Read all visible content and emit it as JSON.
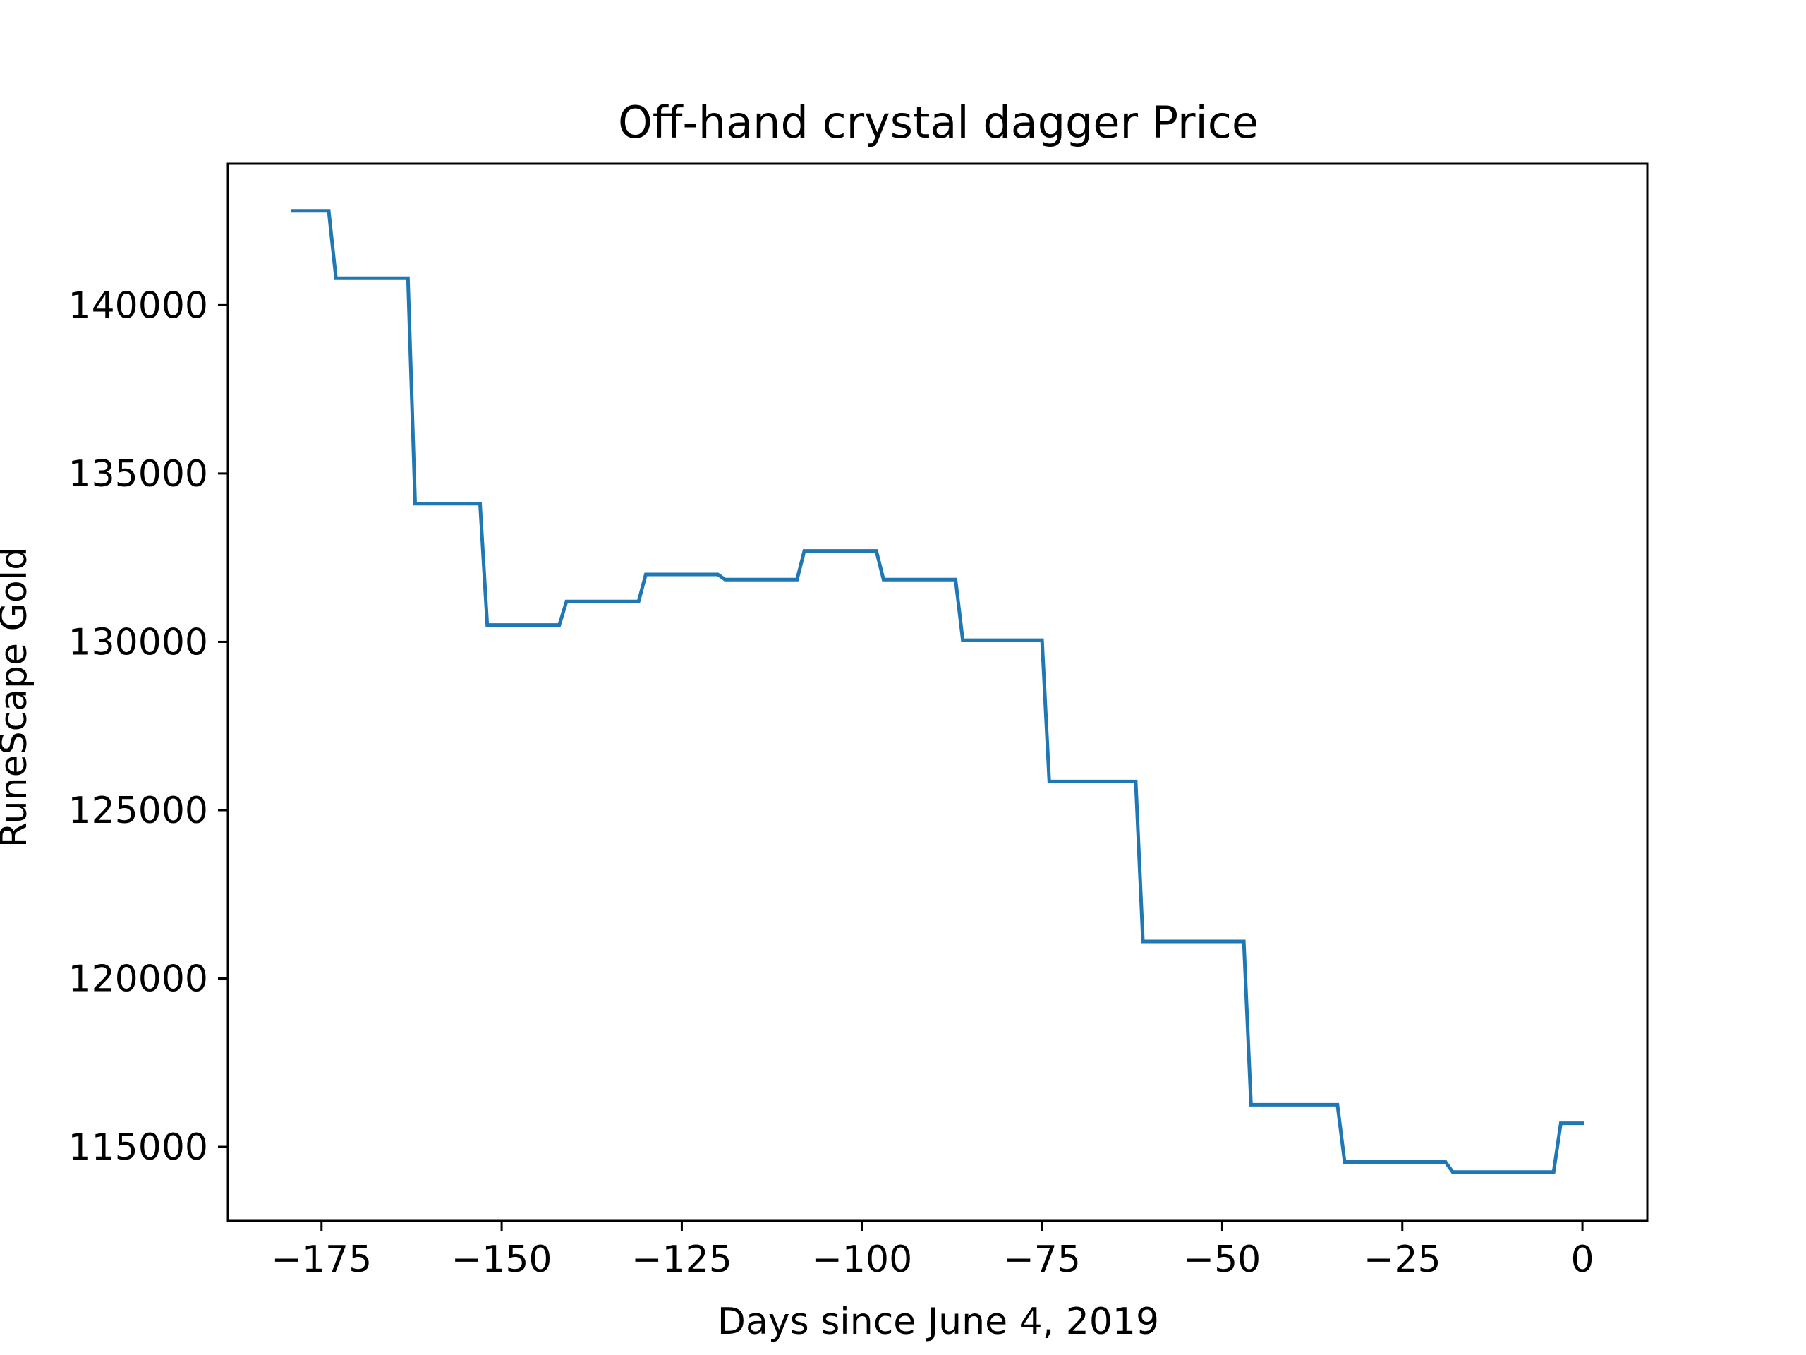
{
  "chart_data": {
    "type": "line",
    "title": "Off-hand crystal dagger Price",
    "xlabel": "Days since June 4, 2019",
    "ylabel": "RuneScape Gold",
    "xlim": [
      -188,
      9
    ],
    "ylim": [
      112800,
      144200
    ],
    "xticks": [
      -175,
      -150,
      -125,
      -100,
      -75,
      -50,
      -25,
      0
    ],
    "xtick_labels": [
      "−175",
      "−150",
      "−125",
      "−100",
      "−75",
      "−50",
      "−25",
      "0"
    ],
    "yticks": [
      115000,
      120000,
      125000,
      130000,
      135000,
      140000
    ],
    "ytick_labels": [
      "115000",
      "120000",
      "125000",
      "130000",
      "135000",
      "140000"
    ],
    "grid": false,
    "legend": "none",
    "series": [
      {
        "color": "#1f77b4",
        "points": [
          [
            -179,
            142800
          ],
          [
            -174,
            142800
          ],
          [
            -173,
            140800
          ],
          [
            -163,
            140800
          ],
          [
            -162,
            134100
          ],
          [
            -153,
            134100
          ],
          [
            -152,
            130500
          ],
          [
            -142,
            130500
          ],
          [
            -141,
            131200
          ],
          [
            -131,
            131200
          ],
          [
            -130,
            132000
          ],
          [
            -120,
            132000
          ],
          [
            -119,
            131850
          ],
          [
            -109,
            131850
          ],
          [
            -108,
            132700
          ],
          [
            -98,
            132700
          ],
          [
            -97,
            131850
          ],
          [
            -87,
            131850
          ],
          [
            -86,
            130050
          ],
          [
            -75,
            130050
          ],
          [
            -74,
            125850
          ],
          [
            -62,
            125850
          ],
          [
            -61,
            121100
          ],
          [
            -47,
            121100
          ],
          [
            -46,
            116250
          ],
          [
            -34,
            116250
          ],
          [
            -33,
            114550
          ],
          [
            -19,
            114550
          ],
          [
            -18,
            114250
          ],
          [
            -4,
            114250
          ],
          [
            -3,
            115700
          ],
          [
            0,
            115700
          ]
        ]
      }
    ]
  }
}
